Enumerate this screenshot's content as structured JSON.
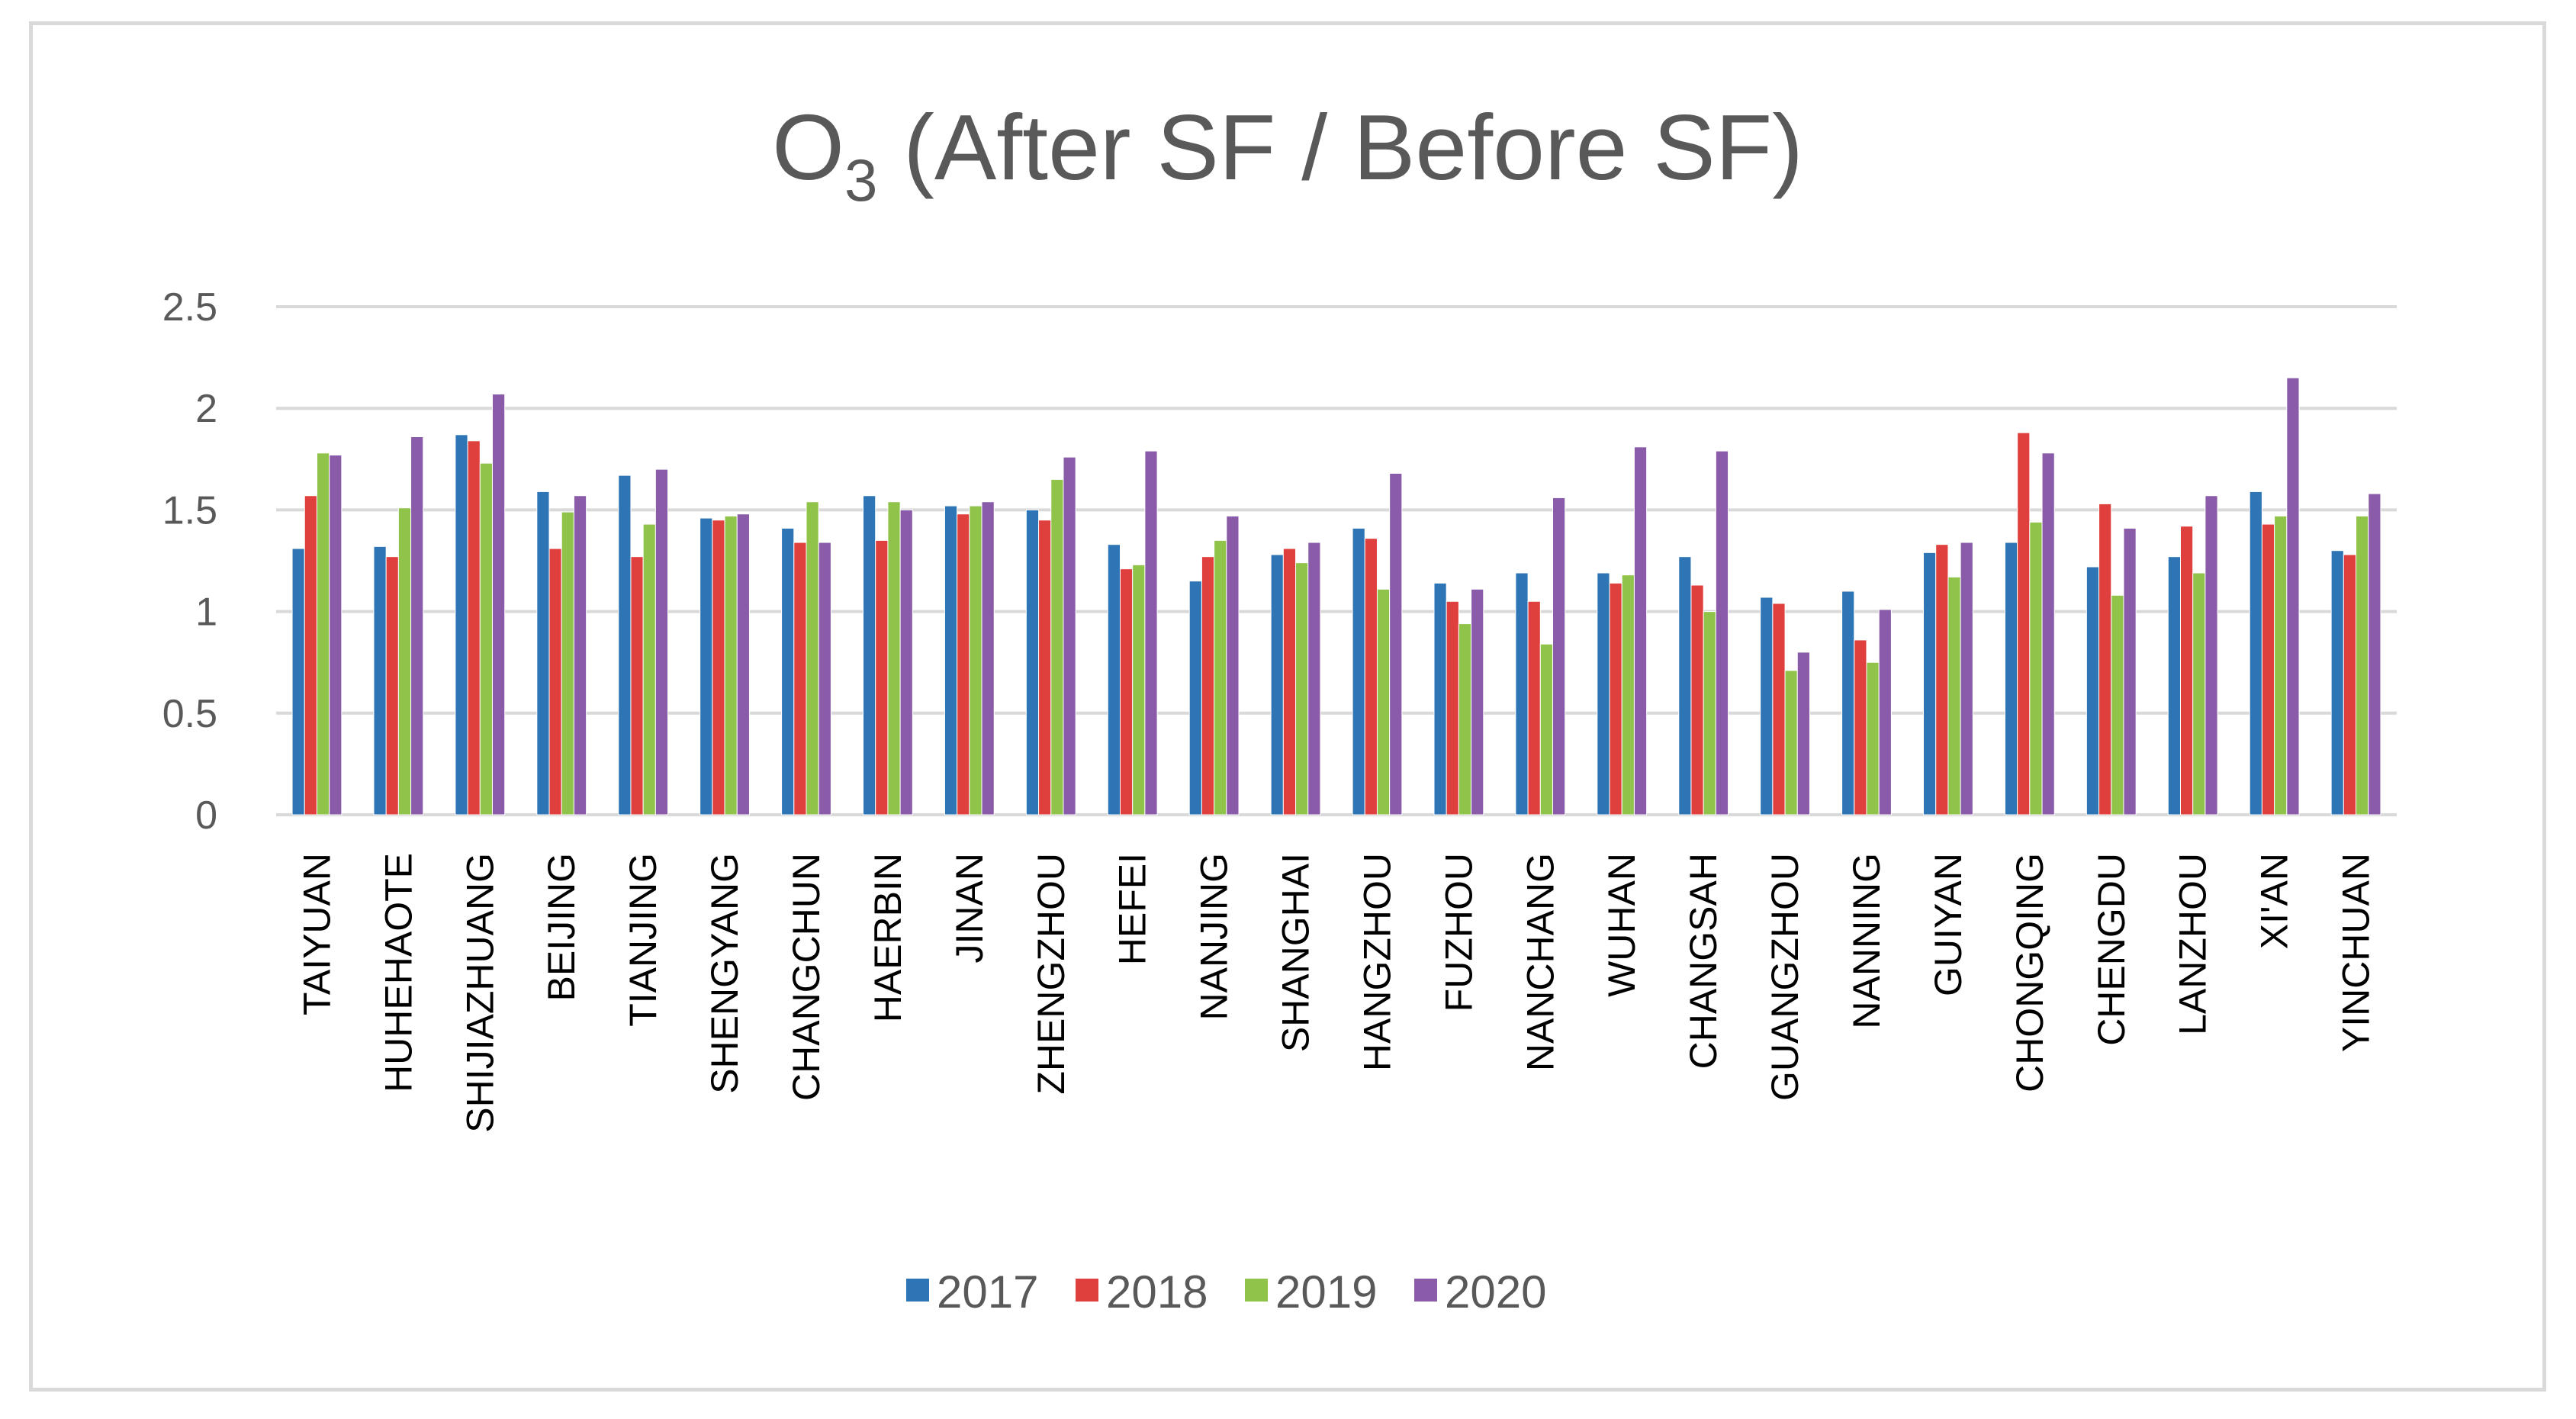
{
  "chart_data": {
    "type": "bar",
    "title": {
      "main": "O",
      "subscript": "3",
      "rest": " (After SF / Before SF)"
    },
    "xlabel": "",
    "ylabel": "",
    "ylim": [
      0,
      2.5
    ],
    "yticks": [
      {
        "value": 0,
        "label": "0"
      },
      {
        "value": 0.5,
        "label": "0.5"
      },
      {
        "value": 1,
        "label": "1"
      },
      {
        "value": 1.5,
        "label": "1.5"
      },
      {
        "value": 2,
        "label": "2"
      },
      {
        "value": 2.5,
        "label": "2.5"
      }
    ],
    "grid": true,
    "legend_position": "bottom",
    "categories": [
      "TAIYUAN",
      "HUHEHAOTE",
      "SHIJIAZHUANG",
      "BEIJING",
      "TIANJING",
      "SHENGYANG",
      "CHANGCHUN",
      "HAERBIN",
      "JINAN",
      "ZHENGZHOU",
      "HEFEI",
      "NANJING",
      "SHANGHAI",
      "HANGZHOU",
      "FUZHOU",
      "NANCHANG",
      "WUHAN",
      "CHANGSAH",
      "GUANGZHOU",
      "NANNING",
      "GUIYAN",
      "CHONGQING",
      "CHENGDU",
      "LANZHOU",
      "XI'AN",
      "YINCHUAN"
    ],
    "series": [
      {
        "name": "2017",
        "color": "#2e75b6",
        "values": [
          1.31,
          1.32,
          1.87,
          1.59,
          1.67,
          1.46,
          1.41,
          1.57,
          1.52,
          1.5,
          1.33,
          1.15,
          1.28,
          1.41,
          1.14,
          1.19,
          1.19,
          1.27,
          1.07,
          1.1,
          1.29,
          1.34,
          1.22,
          1.27,
          1.59,
          1.3
        ]
      },
      {
        "name": "2018",
        "color": "#e0403d",
        "values": [
          1.57,
          1.27,
          1.84,
          1.31,
          1.27,
          1.45,
          1.34,
          1.35,
          1.48,
          1.45,
          1.21,
          1.27,
          1.31,
          1.36,
          1.05,
          1.05,
          1.14,
          1.13,
          1.04,
          0.86,
          1.33,
          1.88,
          1.53,
          1.42,
          1.43,
          1.28
        ]
      },
      {
        "name": "2019",
        "color": "#8fc34a",
        "values": [
          1.78,
          1.51,
          1.73,
          1.49,
          1.43,
          1.47,
          1.54,
          1.54,
          1.52,
          1.65,
          1.23,
          1.35,
          1.24,
          1.11,
          0.94,
          0.84,
          1.18,
          1.0,
          0.71,
          0.75,
          1.17,
          1.44,
          1.08,
          1.19,
          1.47,
          1.47
        ]
      },
      {
        "name": "2020",
        "color": "#8a5ba8",
        "values": [
          1.77,
          1.86,
          2.07,
          1.57,
          1.7,
          1.48,
          1.34,
          1.5,
          1.54,
          1.76,
          1.79,
          1.47,
          1.34,
          1.68,
          1.11,
          1.56,
          1.81,
          1.79,
          0.8,
          1.01,
          1.34,
          1.78,
          1.41,
          1.57,
          2.15,
          1.58
        ]
      }
    ]
  }
}
